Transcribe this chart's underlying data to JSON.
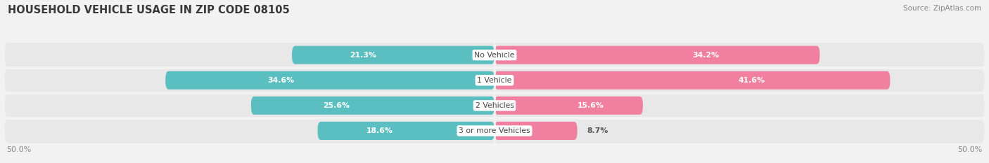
{
  "title": "HOUSEHOLD VEHICLE USAGE IN ZIP CODE 08105",
  "source": "Source: ZipAtlas.com",
  "categories": [
    "No Vehicle",
    "1 Vehicle",
    "2 Vehicles",
    "3 or more Vehicles"
  ],
  "owner_values": [
    21.3,
    34.6,
    25.6,
    18.6
  ],
  "renter_values": [
    34.2,
    41.6,
    15.6,
    8.7
  ],
  "owner_color": "#5bbfc2",
  "renter_color": "#f07fa0",
  "axis_min": -50.0,
  "axis_max": 50.0,
  "x_tick_labels": [
    "50.0%",
    "50.0%"
  ],
  "background_color": "#f2f2f2",
  "row_bg_color": "#e8e8e8",
  "separator_color": "#f2f2f2",
  "title_fontsize": 10.5,
  "source_fontsize": 7.5,
  "label_fontsize": 7.8,
  "value_fontsize": 7.8
}
